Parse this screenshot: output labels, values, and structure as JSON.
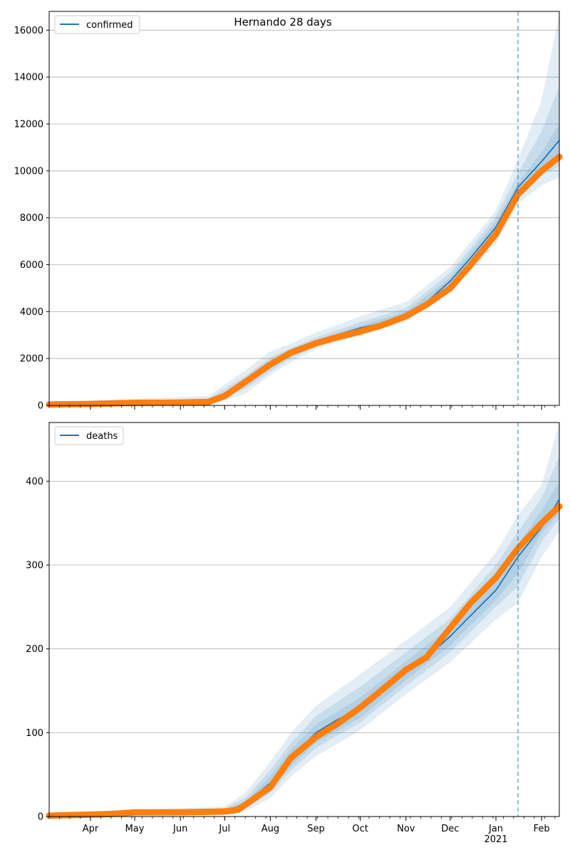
{
  "title": "Hernando 28 days",
  "chart_data": [
    {
      "type": "line",
      "name": "confirmed-panel",
      "legend": "confirmed",
      "legend_position": "upper-left",
      "grid": "y",
      "x_range": [
        "2020-03-04",
        "2021-02-13"
      ],
      "ylim": [
        0,
        16800
      ],
      "yticks": [
        0,
        2000,
        4000,
        6000,
        8000,
        10000,
        12000,
        14000,
        16000
      ],
      "ytick_labels": [
        "0",
        "2000",
        "4000",
        "6000",
        "8000",
        "10000",
        "12000",
        "14000",
        "16000"
      ],
      "forecast_start": "2021-01-16",
      "model_line": {
        "x": [
          "2020-03-04",
          "2020-06-20",
          "2020-07-01",
          "2020-07-15",
          "2020-08-01",
          "2020-08-15",
          "2020-09-01",
          "2020-09-15",
          "2020-10-01",
          "2020-10-15",
          "2020-11-01",
          "2020-11-15",
          "2020-12-01",
          "2020-12-15",
          "2021-01-01",
          "2021-01-16",
          "2021-02-01",
          "2021-02-13"
        ],
        "y": [
          50,
          150,
          350,
          950,
          1700,
          2200,
          2700,
          3000,
          3300,
          3500,
          3900,
          4400,
          5300,
          6300,
          7600,
          9300,
          10400,
          11300
        ]
      },
      "observed": {
        "x": [
          "2020-03-04",
          "2020-04-01",
          "2020-05-01",
          "2020-06-01",
          "2020-06-20",
          "2020-07-01",
          "2020-07-15",
          "2020-08-01",
          "2020-08-15",
          "2020-09-01",
          "2020-09-15",
          "2020-10-01",
          "2020-10-15",
          "2020-11-01",
          "2020-11-15",
          "2020-12-01",
          "2020-12-15",
          "2021-01-01",
          "2021-01-16",
          "2021-02-01",
          "2021-02-13"
        ],
        "y": [
          40,
          60,
          110,
          120,
          150,
          400,
          1000,
          1750,
          2250,
          2650,
          2900,
          3150,
          3400,
          3800,
          4300,
          5000,
          6000,
          7300,
          9000,
          10000,
          10600
        ]
      },
      "bands": {
        "x": [
          "2020-03-04",
          "2020-06-20",
          "2020-07-15",
          "2020-08-01",
          "2020-08-15",
          "2020-09-01",
          "2020-10-01",
          "2020-11-01",
          "2020-12-01",
          "2021-01-01",
          "2021-01-16",
          "2021-02-01",
          "2021-02-13"
        ],
        "outer_low": [
          0,
          0,
          500,
          1300,
          1850,
          2400,
          3000,
          3600,
          4800,
          6900,
          8600,
          9400,
          9700
        ],
        "outer_high": [
          150,
          400,
          1500,
          2300,
          2650,
          3100,
          3800,
          4400,
          5900,
          8300,
          10500,
          13000,
          16700
        ],
        "mid_low": [
          20,
          80,
          700,
          1450,
          2000,
          2500,
          3100,
          3700,
          5000,
          7150,
          8900,
          9800,
          10200
        ],
        "mid_high": [
          100,
          300,
          1250,
          2050,
          2450,
          2900,
          3550,
          4150,
          5650,
          8050,
          9900,
          11700,
          13600
        ],
        "inner_low": [
          35,
          120,
          850,
          1580,
          2100,
          2600,
          3200,
          3800,
          5150,
          7350,
          9100,
          10100,
          10700
        ],
        "inner_high": [
          70,
          200,
          1050,
          1820,
          2300,
          2800,
          3400,
          4000,
          5450,
          7850,
          9500,
          10800,
          12000
        ]
      }
    },
    {
      "type": "line",
      "name": "deaths-panel",
      "legend": "deaths",
      "legend_position": "upper-left",
      "grid": "y",
      "x_range": [
        "2020-03-04",
        "2021-02-13"
      ],
      "ylim": [
        0,
        470
      ],
      "yticks": [
        0,
        100,
        200,
        300,
        400
      ],
      "ytick_labels": [
        "0",
        "100",
        "200",
        "300",
        "400"
      ],
      "forecast_start": "2021-01-16",
      "model_line": {
        "x": [
          "2020-03-04",
          "2020-04-15",
          "2020-07-01",
          "2020-07-15",
          "2020-08-01",
          "2020-08-15",
          "2020-09-01",
          "2020-09-15",
          "2020-10-01",
          "2020-10-15",
          "2020-11-01",
          "2020-11-15",
          "2020-12-01",
          "2020-12-15",
          "2021-01-01",
          "2021-01-16",
          "2021-02-01",
          "2021-02-13"
        ],
        "y": [
          1,
          3,
          6,
          15,
          40,
          70,
          100,
          115,
          130,
          150,
          175,
          190,
          215,
          240,
          270,
          310,
          345,
          378
        ]
      },
      "observed": {
        "x": [
          "2020-03-04",
          "2020-04-15",
          "2020-05-01",
          "2020-06-01",
          "2020-07-01",
          "2020-07-10",
          "2020-07-15",
          "2020-08-01",
          "2020-08-15",
          "2020-09-01",
          "2020-09-15",
          "2020-10-01",
          "2020-10-15",
          "2020-11-01",
          "2020-11-15",
          "2020-12-01",
          "2020-12-15",
          "2021-01-01",
          "2021-01-16",
          "2021-02-01",
          "2021-02-13"
        ],
        "y": [
          1,
          3,
          5,
          5,
          6,
          8,
          14,
          35,
          70,
          95,
          110,
          130,
          150,
          175,
          190,
          225,
          255,
          285,
          320,
          350,
          370
        ]
      },
      "bands": {
        "x": [
          "2020-03-04",
          "2020-07-01",
          "2020-07-15",
          "2020-08-01",
          "2020-08-15",
          "2020-09-01",
          "2020-10-01",
          "2020-11-01",
          "2020-12-01",
          "2021-01-01",
          "2021-01-16",
          "2021-02-01",
          "2021-02-13"
        ],
        "outer_low": [
          0,
          2,
          6,
          22,
          48,
          72,
          103,
          146,
          184,
          235,
          255,
          310,
          340
        ],
        "outer_high": [
          4,
          12,
          28,
          65,
          100,
          132,
          170,
          210,
          250,
          315,
          360,
          395,
          470
        ],
        "mid_low": [
          0,
          3,
          9,
          28,
          55,
          82,
          112,
          156,
          196,
          250,
          275,
          328,
          355
        ],
        "mid_high": [
          3,
          10,
          22,
          55,
          88,
          120,
          155,
          196,
          236,
          300,
          340,
          380,
          430
        ],
        "inner_low": [
          1,
          4,
          11,
          32,
          60,
          88,
          118,
          163,
          204,
          258,
          290,
          338,
          362
        ],
        "inner_high": [
          2,
          8,
          18,
          48,
          80,
          110,
          142,
          185,
          226,
          285,
          325,
          365,
          400
        ]
      }
    }
  ],
  "x_axis": {
    "tick_labels": [
      {
        "date": "2020-04-01",
        "label": "Apr"
      },
      {
        "date": "2020-05-01",
        "label": "May"
      },
      {
        "date": "2020-06-01",
        "label": "Jun"
      },
      {
        "date": "2020-07-01",
        "label": "Jul"
      },
      {
        "date": "2020-08-01",
        "label": "Aug"
      },
      {
        "date": "2020-09-01",
        "label": "Sep"
      },
      {
        "date": "2020-10-01",
        "label": "Oct"
      },
      {
        "date": "2020-11-01",
        "label": "Nov"
      },
      {
        "date": "2020-12-01",
        "label": "Dec"
      },
      {
        "date": "2021-01-01",
        "label": "Jan"
      },
      {
        "date": "2021-02-01",
        "label": "Feb"
      }
    ],
    "year_label": {
      "date": "2021-01-01",
      "label": "2021"
    }
  },
  "colors": {
    "line": "#1f77b4",
    "observed": "#ff7f0e",
    "band": "#1f77b4",
    "grid": "#b0b0b0",
    "forecast_marker": "#1f77b4"
  }
}
